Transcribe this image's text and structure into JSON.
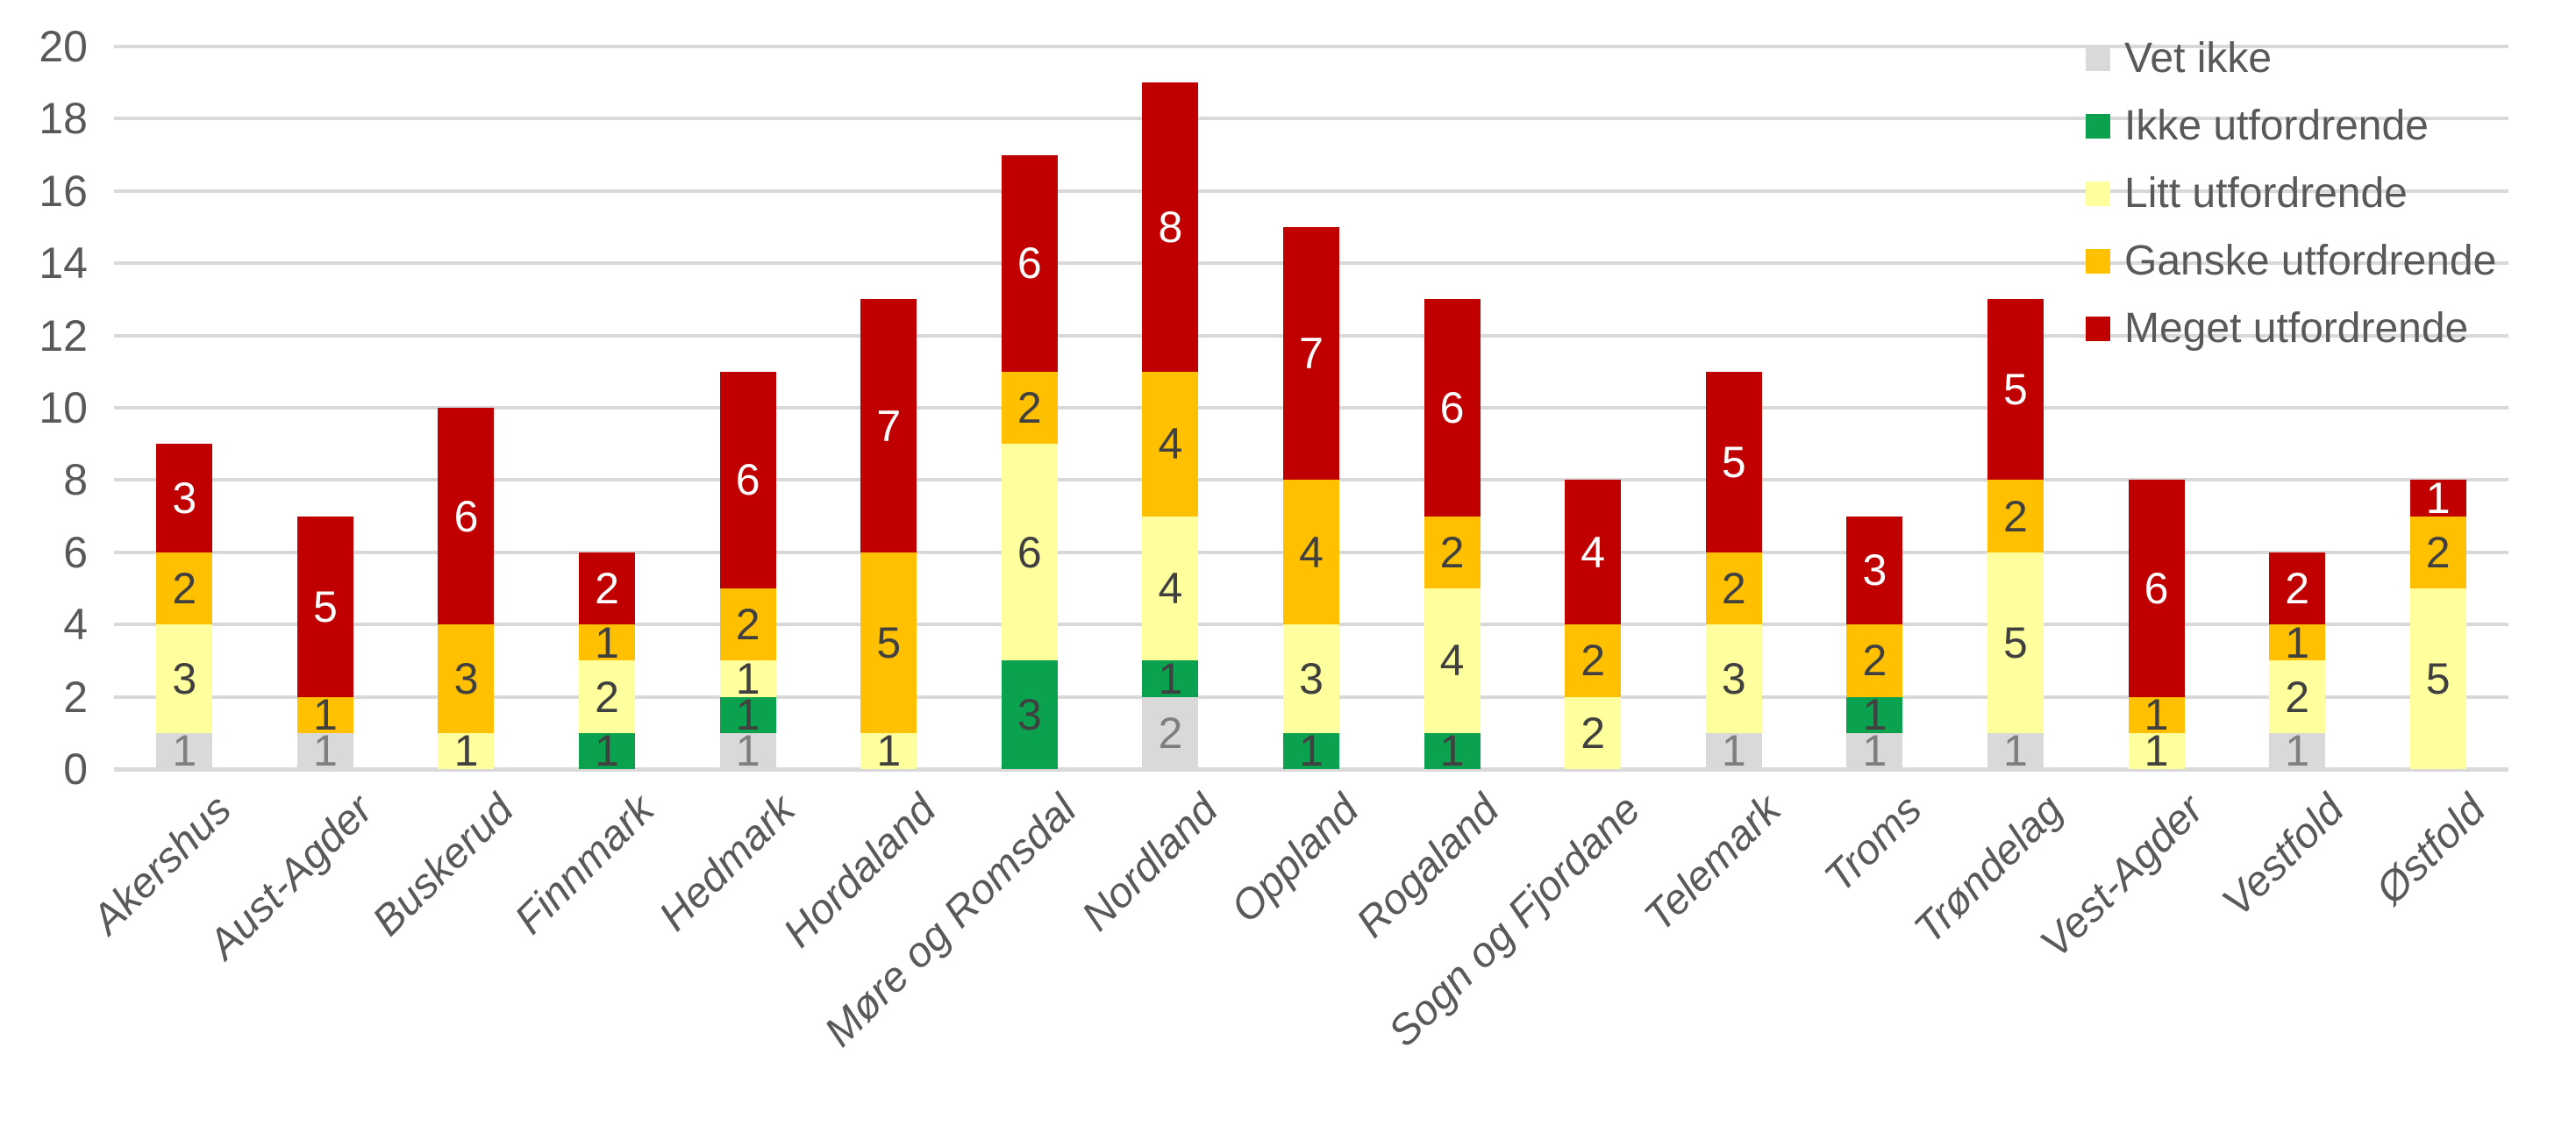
{
  "chart_data": {
    "type": "bar",
    "stacked": true,
    "title": "",
    "xlabel": "",
    "ylabel": "",
    "grid": true,
    "y_axis": {
      "min": 0,
      "max": 20,
      "step": 2,
      "tick_labels": [
        "0",
        "2",
        "4",
        "6",
        "8",
        "10",
        "12",
        "14",
        "16",
        "18",
        "20"
      ]
    },
    "categories": [
      "Akershus",
      "Aust-Agder",
      "Buskerud",
      "Finnmark",
      "Hedmark",
      "Hordaland",
      "Møre og Romsdal",
      "Nordland",
      "Oppland",
      "Rogaland",
      "Sogn og Fjordane",
      "Telemark",
      "Troms",
      "Trøndelag",
      "Vest-Agder",
      "Vestfold",
      "Østfold"
    ],
    "series": [
      {
        "name": "Vet ikke",
        "color": "#D9D9D9",
        "label_color": "#7F7F7F",
        "values": [
          1,
          1,
          0,
          0,
          1,
          0,
          0,
          2,
          0,
          0,
          0,
          1,
          1,
          1,
          0,
          1,
          0
        ]
      },
      {
        "name": "Ikke utfordrende",
        "color": "#0AA24E",
        "label_color": "#404040",
        "values": [
          0,
          0,
          0,
          1,
          1,
          0,
          3,
          1,
          1,
          1,
          0,
          0,
          1,
          0,
          0,
          0,
          0
        ]
      },
      {
        "name": "Litt utfordrende",
        "color": "#FFFF9E",
        "label_color": "#404040",
        "values": [
          3,
          0,
          1,
          2,
          1,
          1,
          6,
          4,
          3,
          4,
          2,
          3,
          0,
          5,
          1,
          2,
          5
        ]
      },
      {
        "name": "Ganske utfordrende",
        "color": "#FFC000",
        "label_color": "#404040",
        "values": [
          2,
          1,
          3,
          1,
          2,
          5,
          2,
          4,
          4,
          2,
          2,
          2,
          2,
          2,
          1,
          1,
          2
        ]
      },
      {
        "name": "Meget utfordrende",
        "color": "#C00000",
        "label_color": "#FFFFFF",
        "values": [
          3,
          5,
          6,
          2,
          6,
          7,
          6,
          8,
          7,
          6,
          4,
          5,
          3,
          5,
          6,
          2,
          1
        ]
      }
    ],
    "totals": [
      9,
      7,
      10,
      6,
      11,
      13,
      17,
      19,
      15,
      13,
      8,
      11,
      7,
      13,
      8,
      6,
      8
    ],
    "legend_position": "top-right",
    "data_labels_shown": true
  },
  "colors": {
    "gridline": "#D9D9D9",
    "axis_text": "#595959",
    "background": "#FFFFFF"
  }
}
